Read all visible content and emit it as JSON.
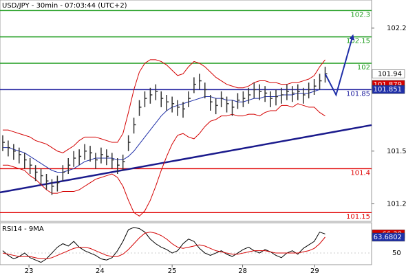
{
  "chart_data": {
    "type": "ohlc",
    "title": "USD/JPY - 30min - 07:03:44 (UTC+2)",
    "xlim": [
      -0.5,
      67.5
    ],
    "xticks": [
      {
        "value": 4.8,
        "label": "23"
      },
      {
        "value": 17.8,
        "label": "24"
      },
      {
        "value": 31,
        "label": "25"
      },
      {
        "value": 43.9,
        "label": "28"
      },
      {
        "value": 57.1,
        "label": "29"
      }
    ],
    "ylim": [
      101.1,
      102.36
    ],
    "yticks": [
      101.2,
      101.5,
      102.2
    ],
    "color": "#333333",
    "marker_color": "#ffffff",
    "high": [
      101.59,
      101.56,
      101.54,
      101.52,
      101.49,
      101.46,
      101.42,
      101.4,
      101.37,
      101.34,
      101.36,
      101.42,
      101.46,
      101.5,
      101.51,
      101.54,
      101.53,
      101.49,
      101.52,
      101.51,
      101.49,
      101.46,
      101.48,
      101.59,
      101.69,
      101.79,
      101.84,
      101.86,
      101.88,
      101.84,
      101.82,
      101.81,
      101.79,
      101.78,
      101.84,
      101.92,
      101.94,
      101.89,
      101.82,
      101.8,
      101.84,
      101.81,
      101.79,
      101.83,
      101.84,
      101.86,
      101.89,
      101.88,
      101.87,
      101.84,
      101.85,
      101.86,
      101.88,
      101.87,
      101.88,
      101.86,
      101.89,
      101.91,
      101.94,
      101.98
    ],
    "low": [
      101.5,
      101.47,
      101.45,
      101.43,
      101.4,
      101.37,
      101.33,
      101.31,
      101.28,
      101.25,
      101.27,
      101.33,
      101.37,
      101.41,
      101.42,
      101.45,
      101.44,
      101.4,
      101.43,
      101.42,
      101.4,
      101.37,
      101.39,
      101.5,
      101.6,
      101.7,
      101.75,
      101.77,
      101.79,
      101.75,
      101.73,
      101.72,
      101.7,
      101.69,
      101.75,
      101.83,
      101.85,
      101.8,
      101.73,
      101.71,
      101.75,
      101.72,
      101.7,
      101.74,
      101.75,
      101.77,
      101.8,
      101.79,
      101.78,
      101.75,
      101.76,
      101.77,
      101.79,
      101.78,
      101.79,
      101.77,
      101.8,
      101.82,
      101.85,
      101.89
    ],
    "close": [
      101.55,
      101.52,
      101.5,
      101.48,
      101.45,
      101.42,
      101.38,
      101.36,
      101.33,
      101.3,
      101.32,
      101.38,
      101.42,
      101.46,
      101.47,
      101.5,
      101.49,
      101.45,
      101.48,
      101.47,
      101.45,
      101.42,
      101.44,
      101.55,
      101.65,
      101.75,
      101.8,
      101.82,
      101.84,
      101.8,
      101.78,
      101.77,
      101.75,
      101.74,
      101.8,
      101.88,
      101.9,
      101.85,
      101.78,
      101.76,
      101.8,
      101.77,
      101.75,
      101.79,
      101.8,
      101.82,
      101.85,
      101.84,
      101.83,
      101.8,
      101.81,
      101.82,
      101.84,
      101.83,
      101.84,
      101.82,
      101.85,
      101.87,
      101.9,
      101.94
    ],
    "bands": [
      {
        "color": "#d40000",
        "values": [
          101.62,
          101.62,
          101.61,
          101.6,
          101.59,
          101.58,
          101.56,
          101.55,
          101.54,
          101.52,
          101.5,
          101.49,
          101.51,
          101.53,
          101.56,
          101.58,
          101.58,
          101.58,
          101.57,
          101.56,
          101.55,
          101.55,
          101.6,
          101.72,
          101.85,
          101.95,
          102.0,
          102.02,
          102.02,
          102.01,
          101.99,
          101.96,
          101.93,
          101.94,
          101.98,
          102.01,
          102.0,
          101.98,
          101.95,
          101.92,
          101.9,
          101.88,
          101.87,
          101.86,
          101.86,
          101.87,
          101.89,
          101.9,
          101.9,
          101.89,
          101.89,
          101.88,
          101.88,
          101.89,
          101.89,
          101.9,
          101.91,
          101.93,
          101.98,
          102.02
        ]
      },
      {
        "color": "#d40000",
        "values": [
          101.42,
          101.42,
          101.41,
          101.4,
          101.39,
          101.36,
          101.34,
          101.31,
          101.28,
          101.26,
          101.26,
          101.27,
          101.27,
          101.27,
          101.28,
          101.3,
          101.32,
          101.34,
          101.35,
          101.36,
          101.37,
          101.35,
          101.3,
          101.22,
          101.15,
          101.13,
          101.16,
          101.22,
          101.3,
          101.39,
          101.47,
          101.54,
          101.59,
          101.6,
          101.58,
          101.57,
          101.6,
          101.64,
          101.67,
          101.68,
          101.7,
          101.7,
          101.71,
          101.7,
          101.7,
          101.71,
          101.71,
          101.7,
          101.72,
          101.73,
          101.73,
          101.76,
          101.76,
          101.75,
          101.77,
          101.76,
          101.75,
          101.75,
          101.72,
          101.7
        ]
      },
      {
        "color": "#1f2fa8",
        "marker_color": "#1f2fa8",
        "values": [
          101.52,
          101.52,
          101.51,
          101.5,
          101.49,
          101.47,
          101.45,
          101.43,
          101.41,
          101.39,
          101.38,
          101.38,
          101.39,
          101.4,
          101.42,
          101.44,
          101.45,
          101.46,
          101.46,
          101.46,
          101.46,
          101.45,
          101.45,
          101.47,
          101.5,
          101.54,
          101.58,
          101.62,
          101.66,
          101.7,
          101.73,
          101.75,
          101.76,
          101.77,
          101.78,
          101.79,
          101.8,
          101.81,
          101.81,
          101.8,
          101.8,
          101.79,
          101.79,
          101.78,
          101.78,
          101.79,
          101.8,
          101.8,
          101.81,
          101.81,
          101.81,
          101.82,
          101.82,
          101.82,
          101.83,
          101.83,
          101.83,
          101.84,
          101.85,
          101.851
        ]
      }
    ],
    "price_markers": [
      {
        "value": 101.879,
        "color": "#d40000"
      }
    ],
    "levels": [
      {
        "value": 102.3,
        "color": "#1c9c1c"
      },
      {
        "value": 102.15,
        "color": "#1c9c1c"
      },
      {
        "value": 102,
        "color": "#1c9c1c"
      },
      {
        "value": 101.85,
        "color": "#1a1a9c"
      },
      {
        "value": 101.4,
        "color": "#e00000"
      },
      {
        "value": 101.15,
        "color": "#e00000"
      }
    ],
    "trendline": {
      "x": [
        -0.5,
        67.5
      ],
      "y": [
        101.265,
        101.648
      ],
      "color": "#1a1a8c"
    },
    "projection": {
      "x": [
        59,
        61,
        64
      ],
      "y": [
        101.94,
        101.82,
        102.15
      ],
      "color": "#1f2fa8"
    },
    "rsi": {
      "title": "RSI14 - 9MA",
      "ylim": [
        40,
        76
      ],
      "yticks": [
        50
      ],
      "series": [
        {
          "color": "#000000",
          "marker_color": "#d40000",
          "values": [
            52,
            48,
            45,
            47,
            50,
            46,
            44,
            42,
            45,
            50,
            55,
            58,
            56,
            60,
            55,
            52,
            50,
            48,
            45,
            44,
            46,
            52,
            60,
            70,
            72,
            71,
            68,
            62,
            58,
            55,
            53,
            50,
            52,
            58,
            62,
            60,
            54,
            50,
            48,
            50,
            52,
            49,
            47,
            50,
            53,
            55,
            52,
            50,
            53,
            51,
            48,
            46,
            50,
            52,
            49,
            54,
            57,
            60,
            68,
            66.38
          ]
        },
        {
          "color": "#d40000",
          "marker_color": "#1f2fa8",
          "values": [
            50,
            49,
            48,
            47,
            47,
            47,
            46,
            45,
            45,
            46,
            48,
            50,
            52,
            54,
            55,
            55,
            54,
            52,
            50,
            48,
            47,
            47,
            49,
            53,
            58,
            63,
            67,
            68,
            67,
            65,
            62,
            58,
            55,
            54,
            55,
            56,
            57,
            56,
            54,
            52,
            51,
            50,
            49,
            49,
            50,
            51,
            52,
            52,
            52,
            51,
            50,
            50,
            50,
            50,
            50,
            51,
            52,
            54,
            58,
            63.6802
          ]
        }
      ]
    }
  }
}
